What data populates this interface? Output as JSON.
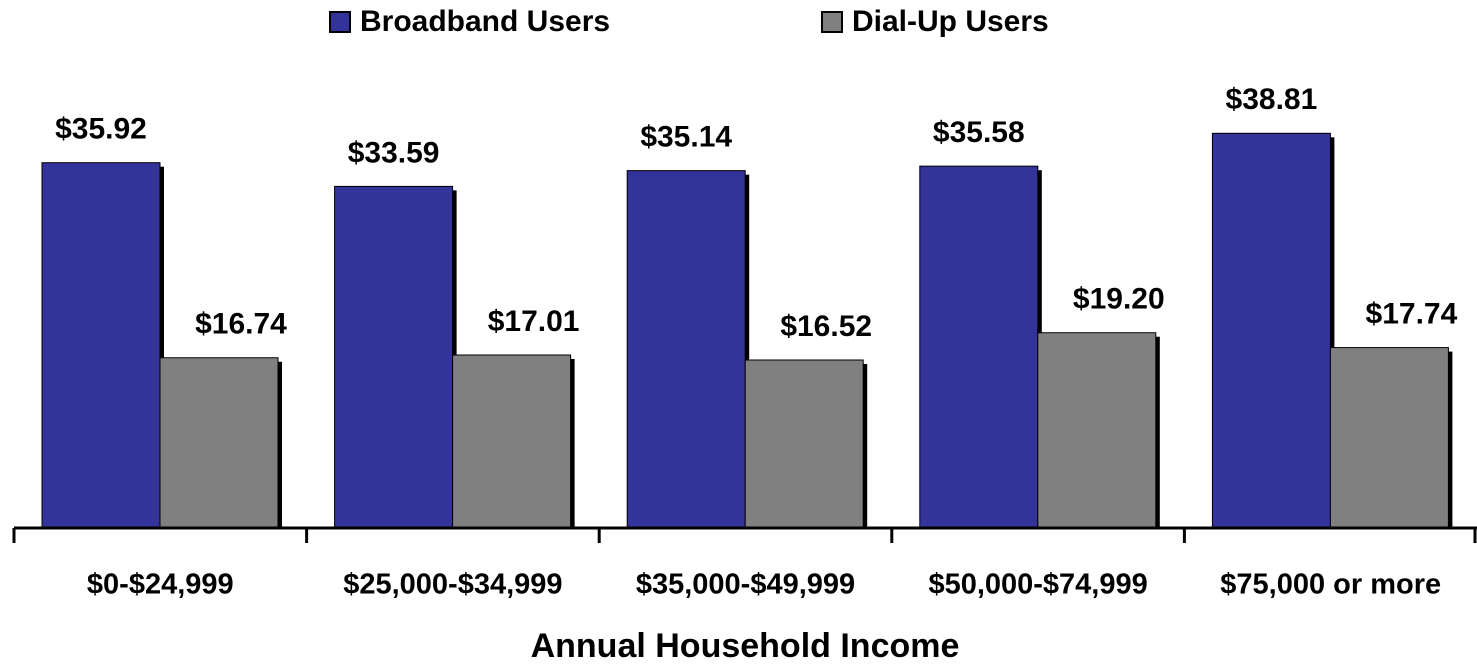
{
  "chart_data": {
    "type": "bar",
    "categories": [
      "$0-$24,999",
      "$25,000-$34,999",
      "$35,000-$49,999",
      "$50,000-$74,999",
      "$75,000 or more"
    ],
    "x_label": "Annual Household Income",
    "series": [
      {
        "name": "Broadband Users",
        "color": "#333399",
        "values": [
          35.92,
          33.59,
          35.14,
          35.58,
          38.81
        ],
        "value_labels": [
          "$35.92",
          "$33.59",
          "$35.14",
          "$35.58",
          "$38.81"
        ]
      },
      {
        "name": "Dial-Up Users",
        "color": "#808080",
        "values": [
          16.74,
          17.01,
          16.52,
          19.2,
          17.74
        ],
        "value_labels": [
          "$16.74",
          "$17.01",
          "$16.52",
          "$19.20",
          "$17.74"
        ]
      }
    ],
    "legend": "top"
  }
}
